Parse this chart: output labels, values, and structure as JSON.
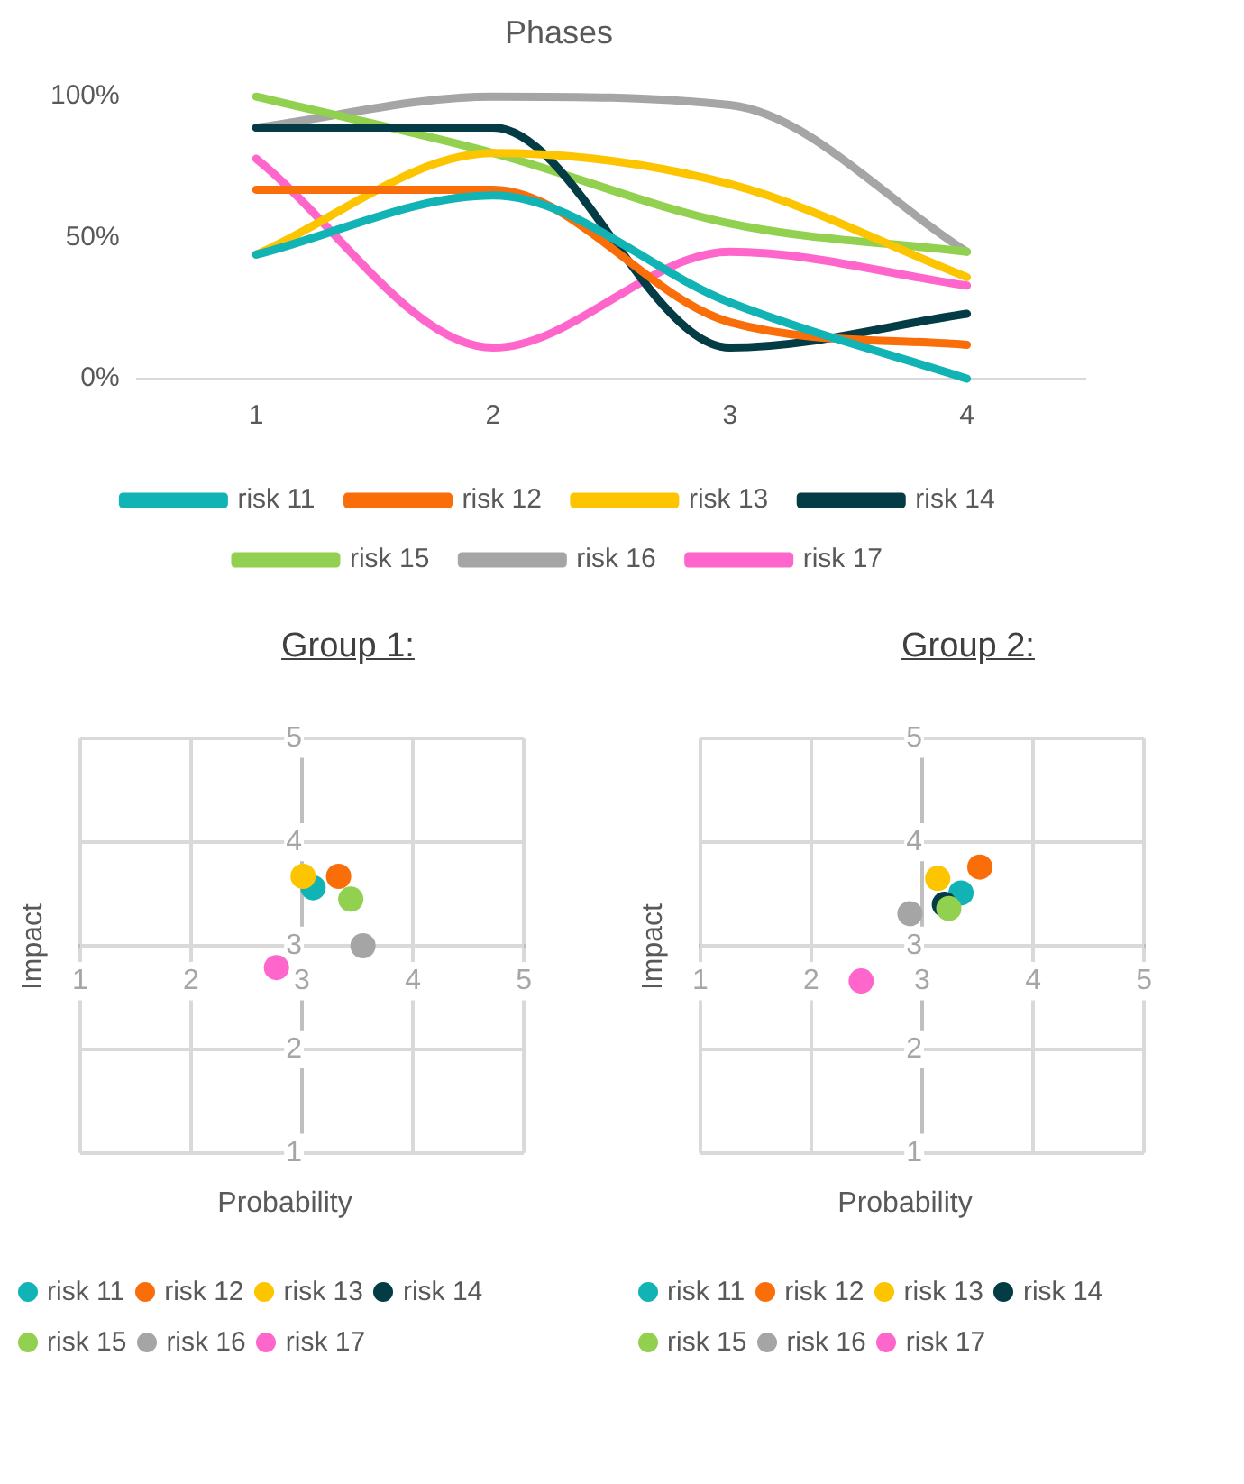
{
  "chart_data": [
    {
      "type": "line",
      "title": "Phases",
      "categories": [
        "1",
        "2",
        "3",
        "4"
      ],
      "ylim": [
        0,
        100
      ],
      "yticks": [
        {
          "value": 0,
          "label": "0%"
        },
        {
          "value": 50,
          "label": "50%"
        },
        {
          "value": 100,
          "label": "100%"
        }
      ],
      "grid": false,
      "legend": "bottom",
      "marker": "none",
      "line_style": "solid",
      "series": [
        {
          "name": "risk 11",
          "color": "#12b3b5",
          "values": [
            44,
            65,
            27,
            0
          ]
        },
        {
          "name": "risk 12",
          "color": "#fa6e0a",
          "values": [
            67,
            67,
            20,
            12
          ]
        },
        {
          "name": "risk 13",
          "color": "#fcc500",
          "values": [
            44,
            80,
            69,
            36
          ]
        },
        {
          "name": "risk 14",
          "color": "#033c45",
          "values": [
            89,
            89,
            11,
            23
          ]
        },
        {
          "name": "risk 15",
          "color": "#92d050",
          "values": [
            100,
            80,
            55,
            45
          ]
        },
        {
          "name": "risk 16",
          "color": "#a5a5a5",
          "values": [
            89,
            100,
            97,
            45
          ]
        },
        {
          "name": "risk 17",
          "color": "#ff66cc",
          "values": [
            78,
            11,
            45,
            33
          ]
        }
      ]
    },
    {
      "type": "scatter",
      "title": "Group 1:",
      "xlabel": "Probability",
      "ylabel": "Impact",
      "xlim": [
        1,
        5
      ],
      "ylim": [
        1,
        5
      ],
      "xticks": [
        1,
        2,
        3,
        4,
        5
      ],
      "yticks": [
        1,
        2,
        3,
        4,
        5
      ],
      "grid": true,
      "legend": "bottom",
      "marker": "circle",
      "series": [
        {
          "name": "risk 11",
          "color": "#12b3b5",
          "x": [
            3.1
          ],
          "values": [
            3.56
          ]
        },
        {
          "name": "risk 12",
          "color": "#fa6e0a",
          "x": [
            3.33
          ],
          "values": [
            3.67
          ]
        },
        {
          "name": "risk 13",
          "color": "#fcc500",
          "x": [
            3.01
          ],
          "values": [
            3.67
          ]
        },
        {
          "name": "risk 14",
          "color": "#033c45",
          "x": [
            null
          ],
          "values": [
            null
          ]
        },
        {
          "name": "risk 15",
          "color": "#92d050",
          "x": [
            3.44
          ],
          "values": [
            3.45
          ]
        },
        {
          "name": "risk 16",
          "color": "#a5a5a5",
          "x": [
            3.55
          ],
          "values": [
            3.0
          ]
        },
        {
          "name": "risk 17",
          "color": "#ff66cc",
          "x": [
            2.77
          ],
          "values": [
            2.79
          ]
        }
      ]
    },
    {
      "type": "scatter",
      "title": "Group 2:",
      "xlabel": "Probability",
      "ylabel": "Impact",
      "xlim": [
        1,
        5
      ],
      "ylim": [
        1,
        5
      ],
      "xticks": [
        1,
        2,
        3,
        4,
        5
      ],
      "yticks": [
        1,
        2,
        3,
        4,
        5
      ],
      "grid": true,
      "legend": "bottom",
      "marker": "circle",
      "series": [
        {
          "name": "risk 11",
          "color": "#12b3b5",
          "x": [
            3.35
          ],
          "values": [
            3.51
          ]
        },
        {
          "name": "risk 12",
          "color": "#fa6e0a",
          "x": [
            3.52
          ],
          "values": [
            3.76
          ]
        },
        {
          "name": "risk 13",
          "color": "#fcc500",
          "x": [
            3.14
          ],
          "values": [
            3.65
          ]
        },
        {
          "name": "risk 14",
          "color": "#033c45",
          "x": [
            3.2
          ],
          "values": [
            3.4
          ]
        },
        {
          "name": "risk 15",
          "color": "#92d050",
          "x": [
            3.24
          ],
          "values": [
            3.36
          ]
        },
        {
          "name": "risk 16",
          "color": "#a5a5a5",
          "x": [
            2.89
          ],
          "values": [
            3.31
          ]
        },
        {
          "name": "risk 17",
          "color": "#ff66cc",
          "x": [
            2.45
          ],
          "values": [
            2.66
          ]
        }
      ]
    }
  ]
}
